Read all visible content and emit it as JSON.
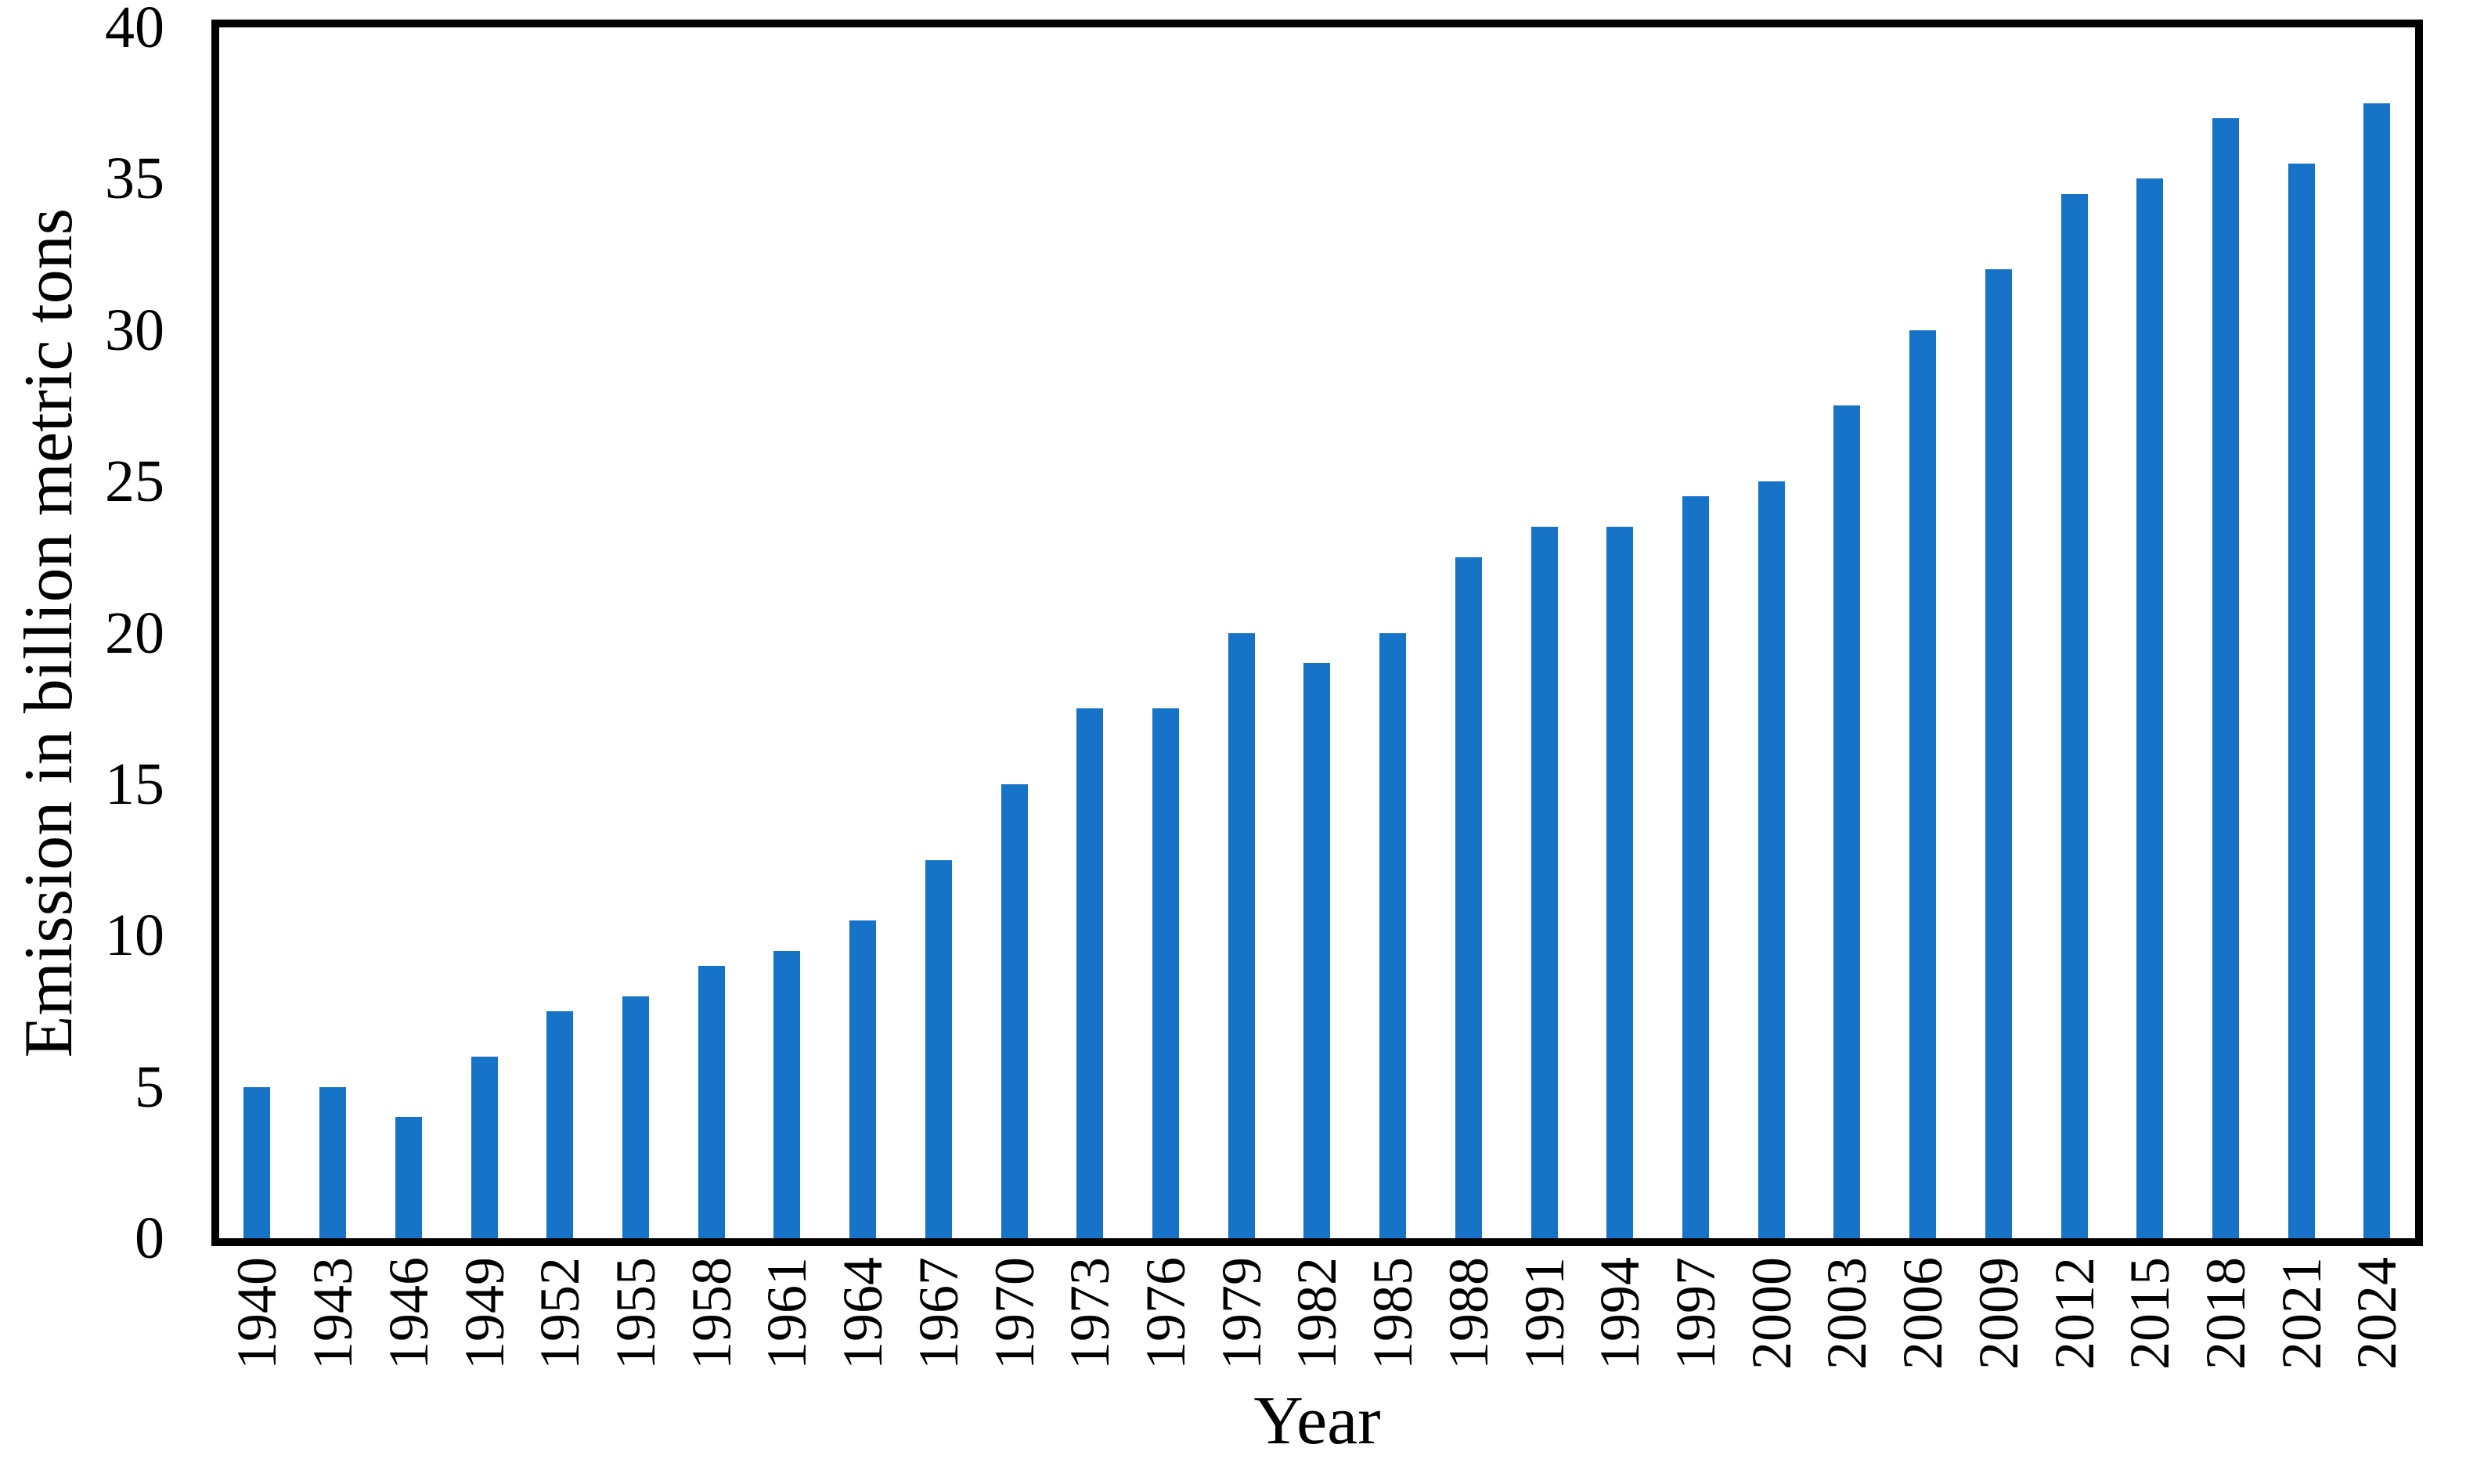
{
  "chart_data": {
    "type": "bar",
    "title": "",
    "xlabel": "Year",
    "ylabel": "Emission in billion metric tons",
    "categories": [
      "1940",
      "1943",
      "1946",
      "1949",
      "1952",
      "1955",
      "1958",
      "1961",
      "1964",
      "1967",
      "1970",
      "1973",
      "1976",
      "1979",
      "1982",
      "1985",
      "1988",
      "1991",
      "1994",
      "1997",
      "2000",
      "2003",
      "2006",
      "2009",
      "2012",
      "2015",
      "2018",
      "2021",
      "2024"
    ],
    "values": [
      5,
      5,
      4,
      6,
      7.5,
      8,
      9,
      9.5,
      10.5,
      12.5,
      15,
      17.5,
      17.5,
      20,
      19,
      20,
      22.5,
      23.5,
      23.5,
      24.5,
      25,
      27.5,
      30,
      32,
      34.5,
      35,
      37,
      35.5,
      37.5
    ],
    "ylim": [
      0,
      40
    ],
    "yticks": [
      0,
      5,
      10,
      15,
      20,
      25,
      30,
      35,
      40
    ],
    "grid": false,
    "legend_position": "none",
    "colors": {
      "bar": "#1773C8",
      "frame": "#000000",
      "background": "#FFFFFF",
      "text": "#000000"
    }
  }
}
